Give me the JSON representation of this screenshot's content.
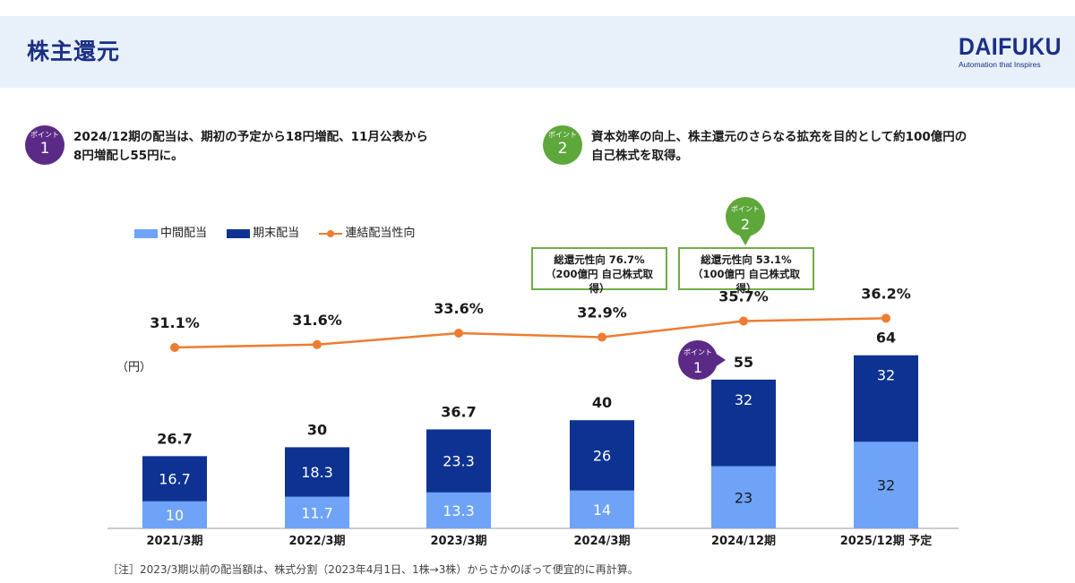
{
  "header": {
    "title": "株主還元"
  },
  "brand": {
    "logo_text": "DAIFUKU",
    "tagline": "Automation that Inspires",
    "color": "#1b2f86"
  },
  "points": [
    {
      "badge_small": "ポイント",
      "badge_num": "1",
      "text_line1": "2024/12期の配当は、期初の予定から18円増配、11月公表から",
      "text_line2": "8円増配し55円に。"
    },
    {
      "badge_small": "ポイント",
      "badge_num": "2",
      "text_line1": "資本効率の向上、株主還元のさらなる拡充を目的として約100億円の",
      "text_line2": "自己株式を取得。"
    }
  ],
  "legend": {
    "interim": "中間配当",
    "final": "期末配当",
    "payout": "連結配当性向"
  },
  "unit_label": "（円）",
  "callouts": [
    {
      "line1": "総還元性向 76.7%",
      "line2": "（200億円 自己株式取得）"
    },
    {
      "line1": "総還元性向 53.1%",
      "line2": "（100億円 自己株式取得）"
    }
  ],
  "chart_badges": [
    {
      "badge_small": "ポイント",
      "badge_num": "2"
    },
    {
      "badge_small": "ポイント",
      "badge_num": "1"
    }
  ],
  "chart_data": {
    "type": "bar",
    "categories": [
      "2021/3期",
      "2022/3期",
      "2023/3期",
      "2024/3期",
      "2024/12期",
      "2025/12期 予定"
    ],
    "series": [
      {
        "name": "中間配当",
        "values": [
          10,
          11.7,
          13.3,
          14,
          23,
          32
        ],
        "labels": [
          "10",
          "11.7",
          "13.3",
          "14",
          "23",
          "32"
        ],
        "color": "#6ea3f7"
      },
      {
        "name": "期末配当",
        "values": [
          16.7,
          18.3,
          23.3,
          26,
          32,
          32
        ],
        "labels": [
          "16.7",
          "18.3",
          "23.3",
          "26",
          "32",
          "32"
        ],
        "color": "#0d3292"
      }
    ],
    "totals": [
      "26.7",
      "30",
      "36.7",
      "40",
      "55",
      "64"
    ],
    "line_series": {
      "name": "連結配当性向",
      "values": [
        31.1,
        31.6,
        33.6,
        32.9,
        35.7,
        36.2
      ],
      "labels": [
        "31.1%",
        "31.6%",
        "33.6%",
        "32.9%",
        "35.7%",
        "36.2%"
      ],
      "color": "#ed7d31"
    },
    "stacked": true
  },
  "footnote": "［注］2023/3期以前の配当額は、株式分割（2023年4月1日、1株→3株）からさかのぼって便宜的に再計算。"
}
